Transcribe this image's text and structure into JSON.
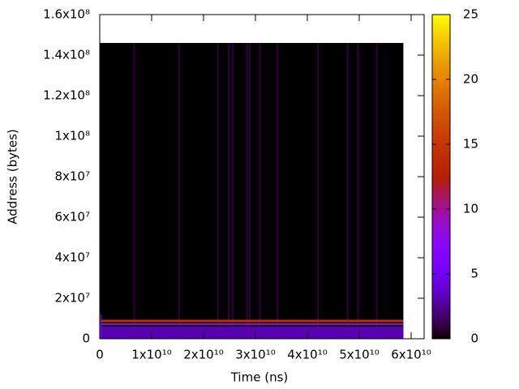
{
  "chart_data": {
    "type": "heatmap",
    "xlabel": "Time (ns)",
    "ylabel": "Address (bytes)",
    "xlim": [
      0,
      62500000000
    ],
    "ylim": [
      0,
      160000000
    ],
    "xticks": [
      0,
      {
        "value": 10000000000,
        "label": "1x10¹⁰"
      },
      {
        "value": 20000000000,
        "label": "2x10¹⁰"
      },
      {
        "value": 30000000000,
        "label": "3x10¹⁰"
      },
      {
        "value": 40000000000,
        "label": "4x10¹⁰"
      },
      {
        "value": 50000000000,
        "label": "5x10¹⁰"
      },
      {
        "value": 60000000000,
        "label": "6x10¹⁰"
      }
    ],
    "yticks": [
      0,
      {
        "value": 20000000,
        "label": "2x10⁷"
      },
      {
        "value": 40000000,
        "label": "4x10⁷"
      },
      {
        "value": 60000000,
        "label": "6x10⁷"
      },
      {
        "value": 80000000,
        "label": "8x10⁷"
      },
      {
        "value": 100000000,
        "label": "1x10⁸"
      },
      {
        "value": 120000000,
        "label": "1.2x10⁸"
      },
      {
        "value": 140000000,
        "label": "1.4x10⁸"
      },
      {
        "value": 160000000,
        "label": "1.6x10⁸"
      }
    ],
    "cblim": [
      0,
      25
    ],
    "cbticks": [
      0,
      5,
      10,
      15,
      20,
      25
    ],
    "cells": [
      {
        "x": [
          0,
          58500000000
        ],
        "y": [
          0,
          146000000
        ],
        "value": 0
      },
      {
        "x": [
          6500000000,
          6800000000
        ],
        "y": [
          0,
          146000000
        ],
        "value": 1
      },
      {
        "x": [
          15100000000,
          15400000000
        ],
        "y": [
          0,
          146000000
        ],
        "value": 1
      },
      {
        "x": [
          22600000000,
          22900000000
        ],
        "y": [
          0,
          146000000
        ],
        "value": 1
      },
      {
        "x": [
          24700000000,
          25000000000
        ],
        "y": [
          0,
          146000000
        ],
        "value": 1
      },
      {
        "x": [
          25500000000,
          25800000000
        ],
        "y": [
          0,
          146000000
        ],
        "value": 1
      },
      {
        "x": [
          28200000000,
          28500000000
        ],
        "y": [
          0,
          146000000
        ],
        "value": 1
      },
      {
        "x": [
          28800000000,
          29100000000
        ],
        "y": [
          0,
          146000000
        ],
        "value": 1
      },
      {
        "x": [
          30700000000,
          31000000000
        ],
        "y": [
          0,
          146000000
        ],
        "value": 1
      },
      {
        "x": [
          34100000000,
          34400000000
        ],
        "y": [
          0,
          146000000
        ],
        "value": 1
      },
      {
        "x": [
          41900000000,
          42200000000
        ],
        "y": [
          0,
          146000000
        ],
        "value": 1
      },
      {
        "x": [
          47600000000,
          47900000000
        ],
        "y": [
          0,
          146000000
        ],
        "value": 1
      },
      {
        "x": [
          49600000000,
          49900000000
        ],
        "y": [
          0,
          146000000
        ],
        "value": 1
      },
      {
        "x": [
          53200000000,
          53500000000
        ],
        "y": [
          0,
          146000000
        ],
        "value": 1
      },
      {
        "x": [
          0,
          58500000000
        ],
        "y": [
          0,
          6000000
        ],
        "value": 3
      },
      {
        "x": [
          0,
          58500000000
        ],
        "y": [
          6800000,
          7600000
        ],
        "value": 8
      },
      {
        "x": [
          0,
          58500000000
        ],
        "y": [
          8200000,
          9400000
        ],
        "value": 14
      },
      {
        "x": [
          0,
          300000000
        ],
        "y": [
          0,
          12000000
        ],
        "value": 6
      }
    ]
  }
}
